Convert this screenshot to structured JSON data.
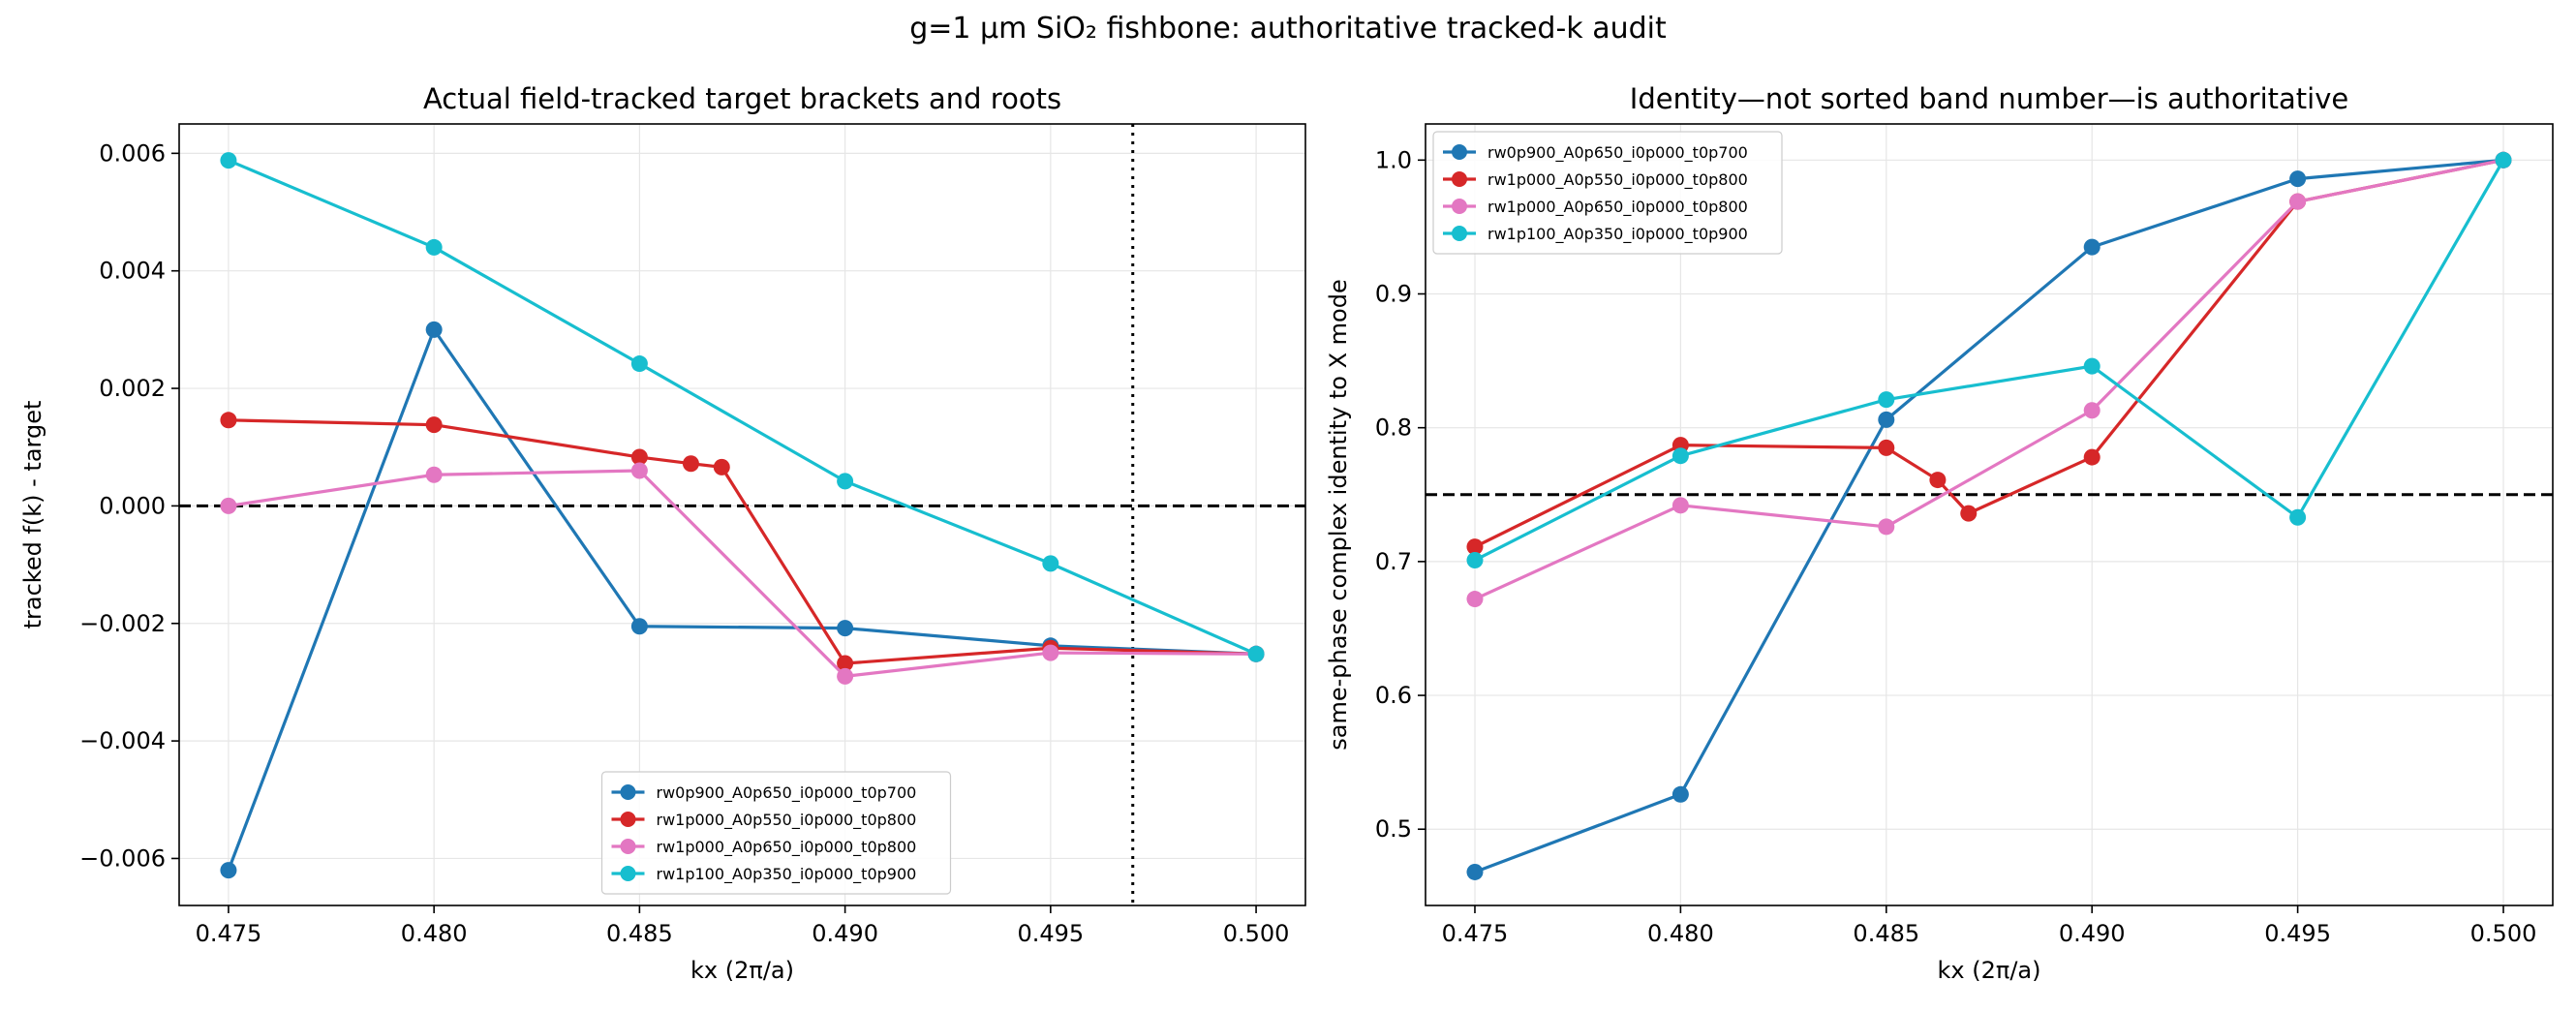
{
  "figure": {
    "suptitle": "g=1 µm SiO₂ fishbone: authoritative tracked-k audit"
  },
  "colors": {
    "rw0p900_A0p650_i0p000_t0p700": "#1f77b4",
    "rw1p000_A0p550_i0p000_t0p800": "#d62728",
    "rw1p000_A0p650_i0p000_t0p800": "#e377c2",
    "rw1p100_A0p350_i0p000_t0p900": "#17becf",
    "grid": "#e6e6e6",
    "reference_line": "#000000"
  },
  "chart_data": [
    {
      "type": "line",
      "title": "Actual field-tracked target brackets and roots",
      "xlabel": "kx (2π/a)",
      "ylabel": "tracked f(k) - target",
      "xlim": [
        0.4738,
        0.5012
      ],
      "ylim": [
        -0.0068,
        0.0065
      ],
      "xticks": [
        0.475,
        0.48,
        0.485,
        0.49,
        0.495,
        0.5
      ],
      "xtick_labels": [
        "0.475",
        "0.480",
        "0.485",
        "0.490",
        "0.495",
        "0.500"
      ],
      "yticks": [
        -0.006,
        -0.004,
        -0.002,
        0.0,
        0.002,
        0.004,
        0.006
      ],
      "ytick_labels": [
        "−0.006",
        "−0.004",
        "−0.002",
        "0.000",
        "0.002",
        "0.004",
        "0.006"
      ],
      "grid": true,
      "legend_position": "lower-center",
      "hlines": [
        {
          "y": 0.0,
          "style": "dashed"
        }
      ],
      "vlines": [
        {
          "x": 0.497,
          "style": "dotted"
        }
      ],
      "series": [
        {
          "name": "rw0p900_A0p650_i0p000_t0p700",
          "color": "#1f77b4",
          "x": [
            0.475,
            0.48,
            0.485,
            0.49,
            0.495,
            0.5
          ],
          "y": [
            -0.0062,
            0.003,
            -0.00205,
            -0.00208,
            -0.00238,
            -0.00252
          ]
        },
        {
          "name": "rw1p000_A0p550_i0p000_t0p800",
          "color": "#d62728",
          "x": [
            0.475,
            0.48,
            0.485,
            0.48625,
            0.487,
            0.49,
            0.495,
            0.5
          ],
          "y": [
            0.00146,
            0.00138,
            0.00083,
            0.00072,
            0.00066,
            -0.00268,
            -0.00242,
            -0.00252
          ]
        },
        {
          "name": "rw1p000_A0p650_i0p000_t0p800",
          "color": "#e377c2",
          "x": [
            0.475,
            0.48,
            0.485,
            0.49,
            0.495,
            0.5
          ],
          "y": [
            0.0,
            0.00053,
            0.0006,
            -0.0029,
            -0.0025,
            -0.00252
          ]
        },
        {
          "name": "rw1p100_A0p350_i0p000_t0p900",
          "color": "#17becf",
          "x": [
            0.475,
            0.48,
            0.485,
            0.49,
            0.495,
            0.5
          ],
          "y": [
            0.00588,
            0.0044,
            0.00242,
            0.00042,
            -0.00098,
            -0.00252
          ]
        }
      ]
    },
    {
      "type": "line",
      "title": "Identity—not sorted band number—is authoritative",
      "xlabel": "kx (2π/a)",
      "ylabel": "same-phase complex identity to X mode",
      "xlim": [
        0.4738,
        0.5012
      ],
      "ylim": [
        0.443,
        1.027
      ],
      "xticks": [
        0.475,
        0.48,
        0.485,
        0.49,
        0.495,
        0.5
      ],
      "xtick_labels": [
        "0.475",
        "0.480",
        "0.485",
        "0.490",
        "0.495",
        "0.500"
      ],
      "yticks": [
        0.5,
        0.6,
        0.7,
        0.8,
        0.9,
        1.0
      ],
      "ytick_labels": [
        "0.5",
        "0.6",
        "0.7",
        "0.8",
        "0.9",
        "1.0"
      ],
      "grid": true,
      "legend_position": "upper-left",
      "hlines": [
        {
          "y": 0.75,
          "style": "dashed"
        }
      ],
      "vlines": [],
      "series": [
        {
          "name": "rw0p900_A0p650_i0p000_t0p700",
          "color": "#1f77b4",
          "x": [
            0.475,
            0.48,
            0.485,
            0.49,
            0.495,
            0.5
          ],
          "y": [
            0.468,
            0.526,
            0.806,
            0.935,
            0.986,
            1.0
          ]
        },
        {
          "name": "rw1p000_A0p550_i0p000_t0p800",
          "color": "#d62728",
          "x": [
            0.475,
            0.48,
            0.485,
            0.48625,
            0.487,
            0.49,
            0.495,
            0.5
          ],
          "y": [
            0.711,
            0.787,
            0.785,
            0.761,
            0.736,
            0.778,
            0.969,
            1.0
          ]
        },
        {
          "name": "rw1p000_A0p650_i0p000_t0p800",
          "color": "#e377c2",
          "x": [
            0.475,
            0.48,
            0.485,
            0.49,
            0.495,
            0.5
          ],
          "y": [
            0.672,
            0.742,
            0.726,
            0.813,
            0.969,
            1.0
          ]
        },
        {
          "name": "rw1p100_A0p350_i0p000_t0p900",
          "color": "#17becf",
          "x": [
            0.475,
            0.48,
            0.485,
            0.49,
            0.495,
            0.5
          ],
          "y": [
            0.701,
            0.779,
            0.821,
            0.846,
            0.733,
            1.0
          ]
        }
      ]
    }
  ]
}
